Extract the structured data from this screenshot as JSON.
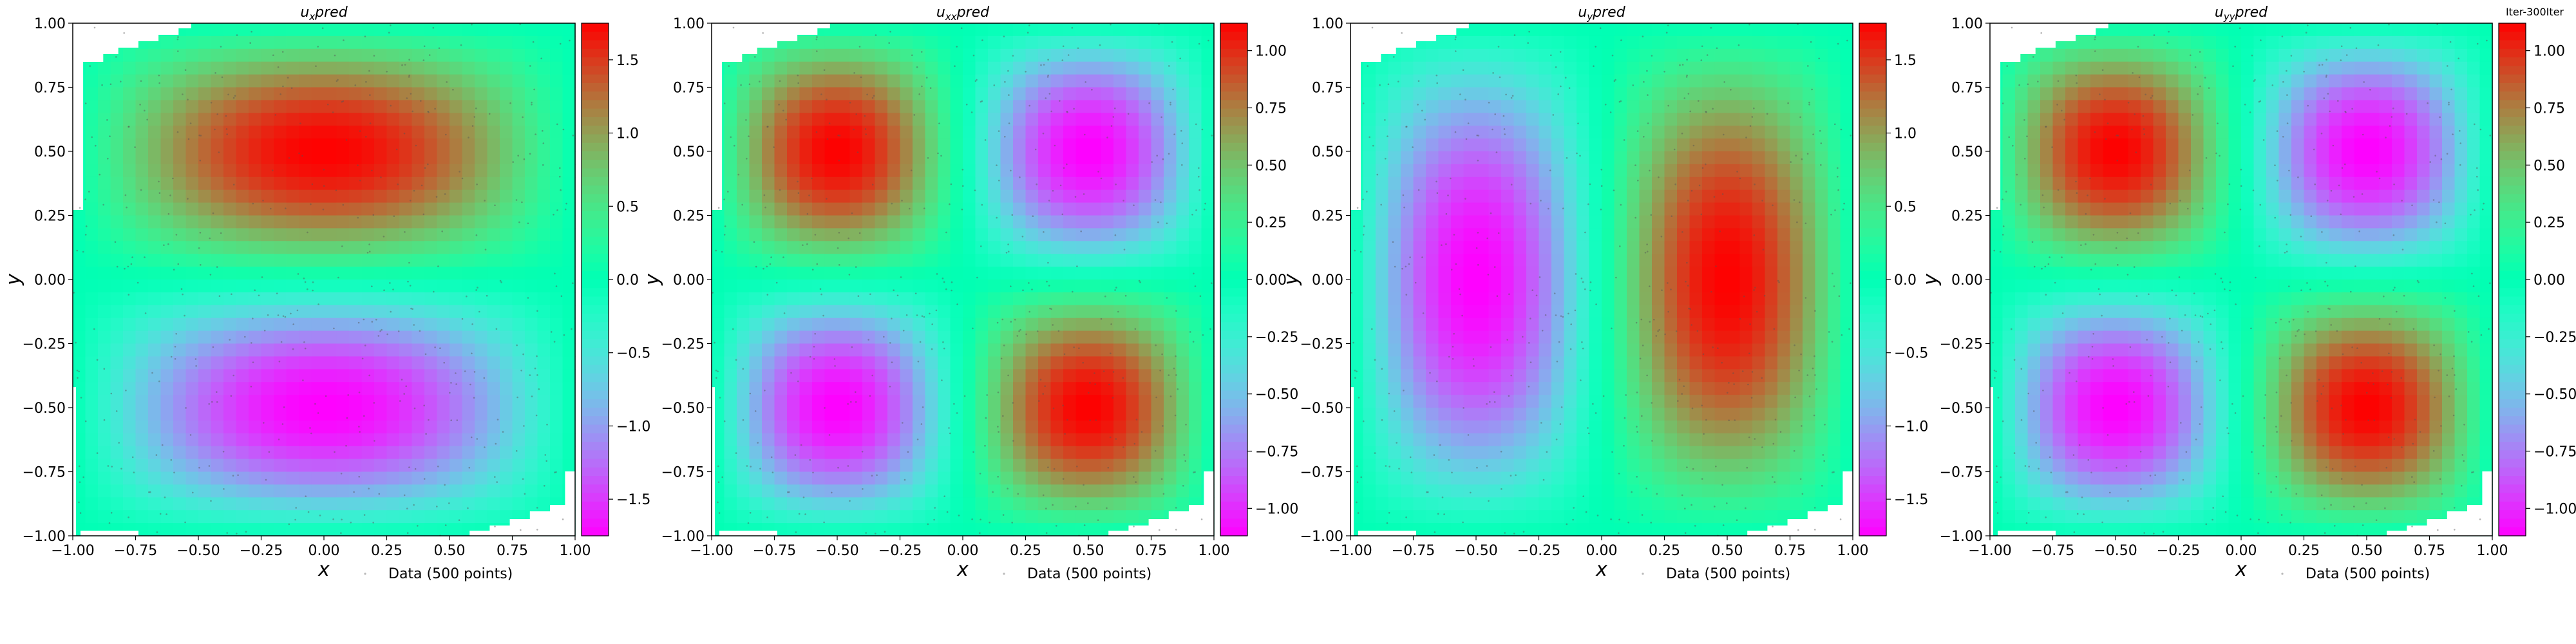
{
  "chart_data": [
    {
      "type": "heatmap",
      "title": "u_x pred",
      "title_main": "u",
      "title_sub": "x",
      "title_suffix": "pred",
      "xlabel": "x",
      "ylabel": "y",
      "xlim": [
        -1.0,
        1.0
      ],
      "ylim": [
        -1.0,
        1.0
      ],
      "xticks": [
        -1.0,
        -0.75,
        -0.5,
        -0.25,
        0.0,
        0.25,
        0.5,
        0.75,
        1.0
      ],
      "yticks": [
        -1.0,
        -0.75,
        -0.5,
        -0.25,
        0.0,
        0.25,
        0.5,
        0.75,
        1.0
      ],
      "colormap": "rainbow",
      "colorbar": {
        "min": -1.75,
        "max": 1.75,
        "ticks": [
          -1.5,
          -1.0,
          -0.5,
          0.0,
          0.5,
          1.0,
          1.5
        ]
      },
      "field": "sin(pi*y)*cos(pi*x/2)*1.75",
      "legend": "Data (500 points)",
      "legend_loc": "lower-right",
      "missing_corners": [
        "top-left",
        "bottom-right"
      ]
    },
    {
      "type": "heatmap",
      "title": "u_xx pred",
      "title_main": "u",
      "title_sub": "xx",
      "title_suffix": "pred",
      "xlabel": "x",
      "ylabel": "y",
      "xlim": [
        -1.0,
        1.0
      ],
      "ylim": [
        -1.0,
        1.0
      ],
      "xticks": [
        -1.0,
        -0.75,
        -0.5,
        -0.25,
        0.0,
        0.25,
        0.5,
        0.75,
        1.0
      ],
      "yticks": [
        -1.0,
        -0.75,
        -0.5,
        -0.25,
        0.0,
        0.25,
        0.5,
        0.75,
        1.0
      ],
      "colormap": "rainbow",
      "colorbar": {
        "min": -1.12,
        "max": 1.12,
        "ticks": [
          -1.0,
          -0.75,
          -0.5,
          -0.25,
          0.0,
          0.25,
          0.5,
          0.75,
          1.0
        ]
      },
      "field": "-sin(pi*x)*sin(pi*y)*1.12",
      "legend": "Data (500 points)",
      "legend_loc": "lower-right",
      "missing_corners": [
        "top-left",
        "bottom-right"
      ]
    },
    {
      "type": "heatmap",
      "title": "u_y pred",
      "title_main": "u",
      "title_sub": "y",
      "title_suffix": "pred",
      "xlabel": "x",
      "ylabel": "y",
      "xlim": [
        -1.0,
        1.0
      ],
      "ylim": [
        -1.0,
        1.0
      ],
      "xticks": [
        -1.0,
        -0.75,
        -0.5,
        -0.25,
        0.0,
        0.25,
        0.5,
        0.75,
        1.0
      ],
      "yticks": [
        -1.0,
        -0.75,
        -0.5,
        -0.25,
        0.0,
        0.25,
        0.5,
        0.75,
        1.0
      ],
      "colormap": "rainbow",
      "colorbar": {
        "min": -1.75,
        "max": 1.75,
        "ticks": [
          -1.5,
          -1.0,
          -0.5,
          0.0,
          0.5,
          1.0,
          1.5
        ]
      },
      "field": "sin(pi*x)*cos(pi*y/2)*1.75",
      "legend": "Data (500 points)",
      "legend_loc": "lower-right",
      "missing_corners": [
        "top-left",
        "bottom-right"
      ]
    },
    {
      "type": "heatmap",
      "title": "u_yy pred",
      "title_main": "u",
      "title_sub": "yy",
      "title_suffix": "pred",
      "xlabel": "x",
      "ylabel": "y",
      "xlim": [
        -1.0,
        1.0
      ],
      "ylim": [
        -1.0,
        1.0
      ],
      "xticks": [
        -1.0,
        -0.75,
        -0.5,
        -0.25,
        0.0,
        0.25,
        0.5,
        0.75,
        1.0
      ],
      "yticks": [
        -1.0,
        -0.75,
        -0.5,
        -0.25,
        0.0,
        0.25,
        0.5,
        0.75,
        1.0
      ],
      "colormap": "rainbow",
      "colorbar": {
        "min": -1.12,
        "max": 1.12,
        "ticks": [
          -1.0,
          -0.75,
          -0.5,
          -0.25,
          0.0,
          0.25,
          0.5,
          0.75,
          1.0
        ]
      },
      "field": "-sin(pi*x)*sin(pi*y)*1.12",
      "legend": "Data (500 points)",
      "legend_loc": "lower-right",
      "missing_corners": [
        "top-left",
        "bottom-right"
      ],
      "corner_text": "Iter-300Iter"
    }
  ]
}
